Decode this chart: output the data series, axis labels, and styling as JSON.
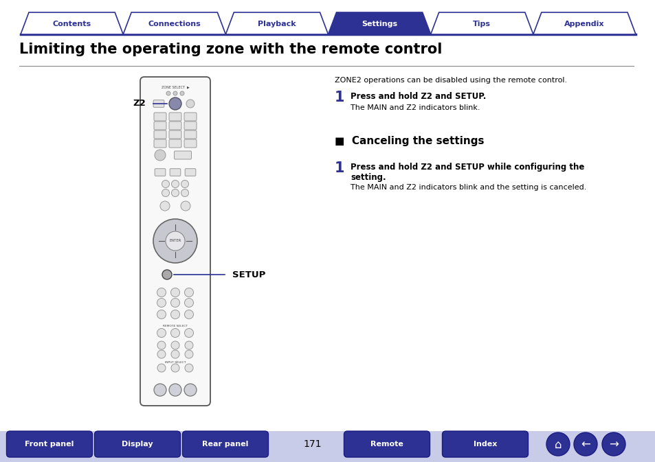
{
  "title": "Limiting the operating zone with the remote control",
  "bg_color": "#ffffff",
  "tab_names": [
    "Contents",
    "Connections",
    "Playback",
    "Settings",
    "Tips",
    "Appendix"
  ],
  "active_tab": 3,
  "tab_color_active": "#2d3194",
  "tab_color_inactive": "#ffffff",
  "tab_text_color_active": "#ffffff",
  "tab_text_color_inactive": "#2d3194",
  "tab_border_color": "#2d3194",
  "header_line_color": "#2d3194",
  "title_color": "#000000",
  "intro_text": "ZONE2 operations can be disabled using the remote control.",
  "step1_num": "1",
  "step1_bold": "Press and hold Z2 and SETUP.",
  "step1_text": "The MAIN and Z2 indicators blink.",
  "section_icon": "■",
  "section_title": "Canceling the settings",
  "step2_num": "1",
  "step2_bold": "Press and hold Z2 and SETUP while configuring the\nsetting.",
  "step2_text": "The MAIN and Z2 indicators blink and the setting is canceled.",
  "label_z2": "Z2",
  "label_setup": "SETUP",
  "footer_buttons": [
    "Front panel",
    "Display",
    "Rear panel",
    "Remote",
    "Index"
  ],
  "footer_page": "171",
  "footer_btn_color": "#2d3194",
  "footer_btn_text_color": "#ffffff",
  "text_color_dark": "#000000",
  "text_color_blue": "#2d3194",
  "footer_bg_color": "#c8cce8"
}
